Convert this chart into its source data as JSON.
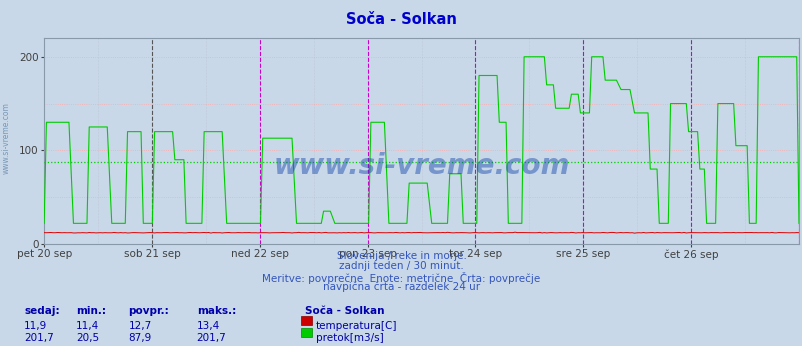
{
  "title": "Soča - Solkan",
  "title_color": "#0000cc",
  "bg_color": "#c8d8e8",
  "plot_bg_color": "#c8d8e8",
  "xlabel_ticks": [
    "pet 20 sep",
    "sob 21 sep",
    "ned 22 sep",
    "pon 23 sep",
    "tor 24 sep",
    "sre 25 sep",
    "čet 26 sep"
  ],
  "ylim": [
    0,
    220
  ],
  "yticks": [
    0,
    100,
    200
  ],
  "avg_line_color": "#00cc00",
  "avg_line_value": 87.9,
  "temp_color": "#dd0000",
  "flow_color": "#00cc00",
  "watermark": "www.si-vreme.com",
  "watermark_color": "#1144aa",
  "subtitle1": "Slovenija / reke in morje.",
  "subtitle2": "zadnji teden / 30 minut.",
  "subtitle3": "Meritve: povprečne  Enote: metrične  Črta: povprečje",
  "subtitle4": "navpična črta - razdelek 24 ur",
  "subtitle_color": "#3355bb",
  "legend_title": "Soča - Solkan",
  "legend_color": "#0000aa",
  "stats_color": "#0000aa",
  "stats_headers": [
    "sedaj:",
    "min.:",
    "povpr.:",
    "maks.:"
  ],
  "temp_stats": [
    "11,9",
    "11,4",
    "12,7",
    "13,4"
  ],
  "flow_stats": [
    "201,7",
    "20,5",
    "87,9",
    "201,7"
  ],
  "temp_label": "temperatura[C]",
  "flow_label": "pretok[m3/s]",
  "side_text": "www.si-vreme.com",
  "n_points": 336,
  "days": 7
}
